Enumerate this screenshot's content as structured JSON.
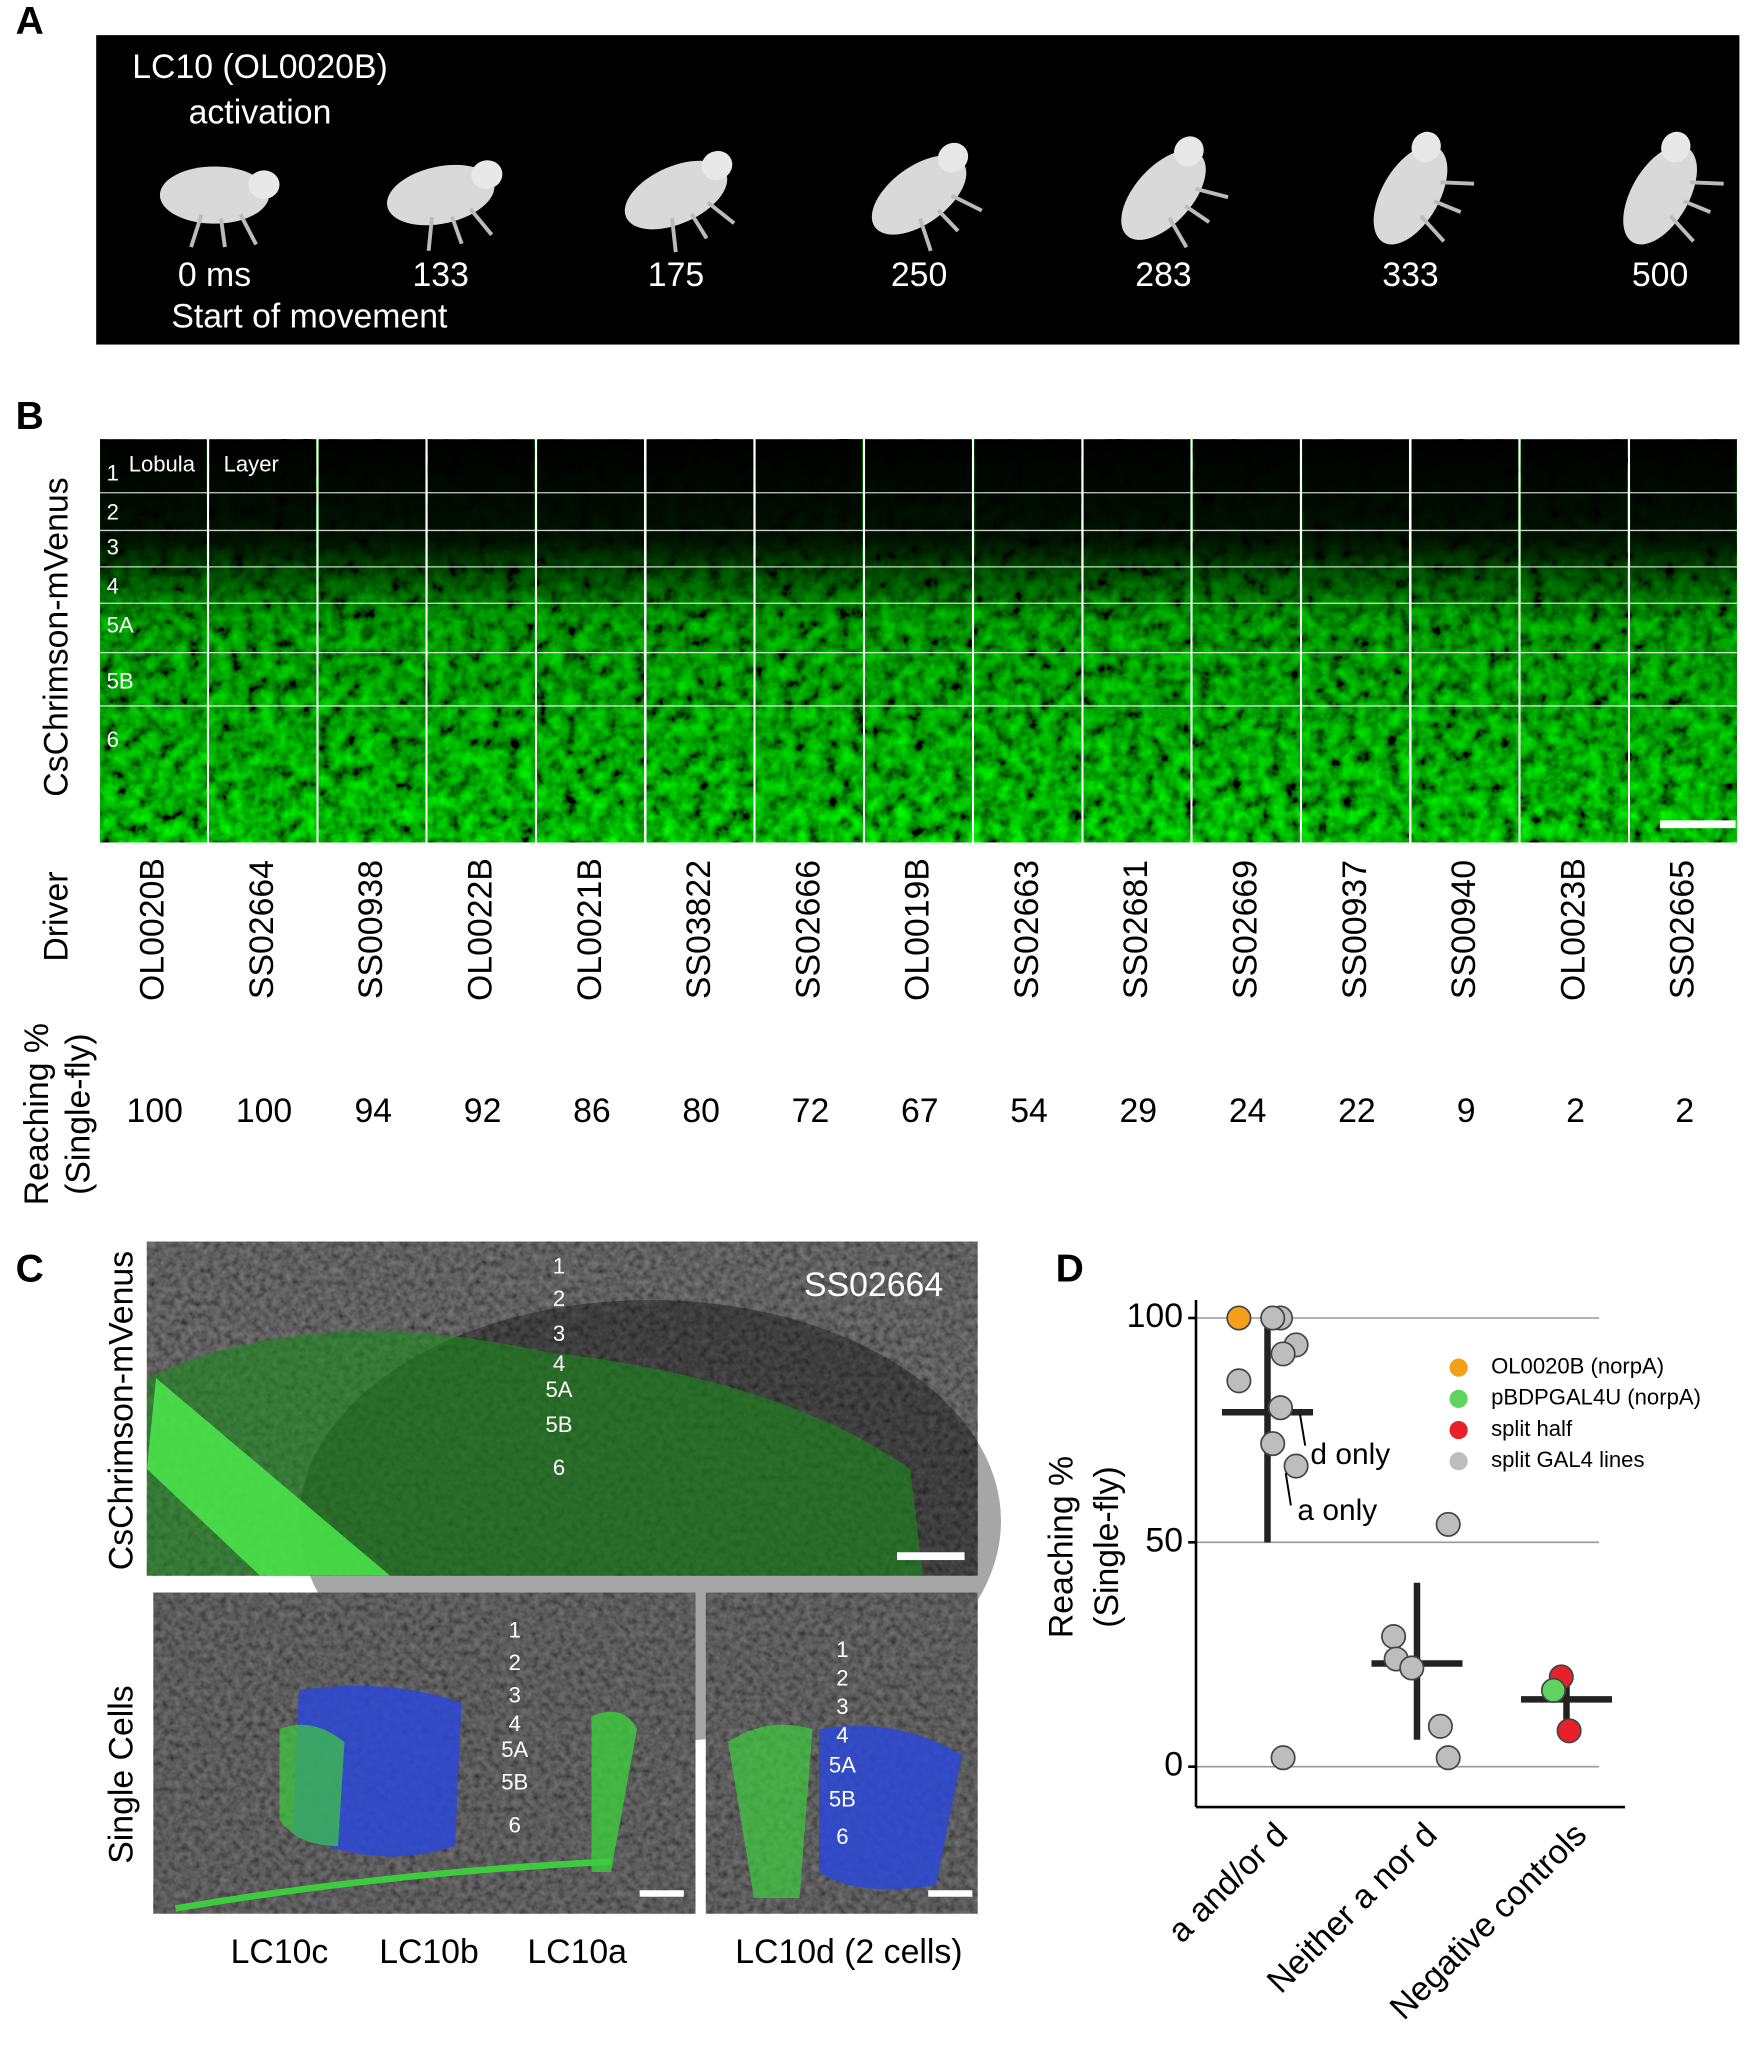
{
  "panel_a": {
    "label": "A",
    "title_line1": "LC10 (OL0020B)",
    "title_line2": "activation",
    "times": [
      "0 ms",
      "133",
      "175",
      "250",
      "283",
      "333",
      "500"
    ],
    "caption": "Start of movement"
  },
  "panel_b": {
    "label": "B",
    "y_label": "CsChrimson-mVenus",
    "lobula_label": "Lobula",
    "layer_label": "Layer",
    "layers": [
      "1",
      "2",
      "3",
      "4",
      "5A",
      "5B",
      "6"
    ],
    "driver_label": "Driver",
    "drivers": [
      "OL0020B",
      "SS02664",
      "SS00938",
      "OL0022B",
      "OL0021B",
      "SS03822",
      "SS02666",
      "OL0019B",
      "SS02663",
      "SS02681",
      "SS02669",
      "SS00937",
      "SS00940",
      "OL0023B",
      "SS02665"
    ],
    "reaching_label_line1": "Reaching %",
    "reaching_label_line2": "(Single-fly)",
    "reaching": [
      100,
      100,
      94,
      92,
      86,
      80,
      72,
      67,
      54,
      29,
      24,
      22,
      9,
      2,
      2
    ]
  },
  "panel_c": {
    "label": "C",
    "top_y_label": "CsChrimson-mVenus",
    "line_name": "SS02664",
    "layers_top": [
      "1",
      "2",
      "3",
      "4",
      "5A",
      "5B",
      "6"
    ],
    "bottom_y_label": "Single Cells",
    "layers_left": [
      "1",
      "2",
      "3",
      "4",
      "5A",
      "5B",
      "6"
    ],
    "layers_right": [
      "1",
      "2",
      "3",
      "4",
      "5A",
      "5B",
      "6"
    ],
    "cell_labels": [
      "LC10c",
      "LC10b",
      "LC10a"
    ],
    "cell_label_d": "LC10d (2 cells)"
  },
  "chart_data": {
    "type": "scatter",
    "label": "D",
    "y_label_line1": "Reaching %",
    "y_label_line2": "(Single-fly)",
    "categories": [
      "a and/or d",
      "Neither a nor d",
      "Negative controls"
    ],
    "ylim": [
      -9,
      104
    ],
    "yticks": [
      0,
      50,
      100
    ],
    "grid": true,
    "series": [
      {
        "name": "OL0020B (norpA)",
        "color": "#f5a01a",
        "x": [
          "a and/or d"
        ],
        "values": [
          100
        ]
      },
      {
        "name": "pBDPGAL4U (norpA)",
        "color": "#5fd35f",
        "x": [
          "Negative controls"
        ],
        "values": [
          17
        ]
      },
      {
        "name": "split half",
        "color": "#e8202a",
        "x": [
          "Negative controls",
          "Negative controls"
        ],
        "values": [
          8,
          20
        ]
      },
      {
        "name": "split GAL4 lines",
        "color": "#bdbdbd",
        "x": [
          "a and/or d",
          "a and/or d",
          "a and/or d",
          "a and/or d",
          "a and/or d",
          "a and/or d",
          "a and/or d",
          "a and/or d",
          "a and/or d",
          "Neither a nor d",
          "Neither a nor d",
          "Neither a nor d",
          "Neither a nor d",
          "Neither a nor d",
          "Neither a nor d"
        ],
        "values": [
          100,
          100,
          94,
          92,
          86,
          80,
          72,
          67,
          2,
          54,
          29,
          24,
          22,
          9,
          2
        ]
      }
    ],
    "summary": [
      {
        "mean": 79,
        "low": 50,
        "high": 100
      },
      {
        "mean": 23,
        "low": 6,
        "high": 41
      },
      {
        "mean": 15,
        "low": 8,
        "high": 21
      }
    ],
    "annotations": [
      "d only",
      "a only"
    ]
  }
}
